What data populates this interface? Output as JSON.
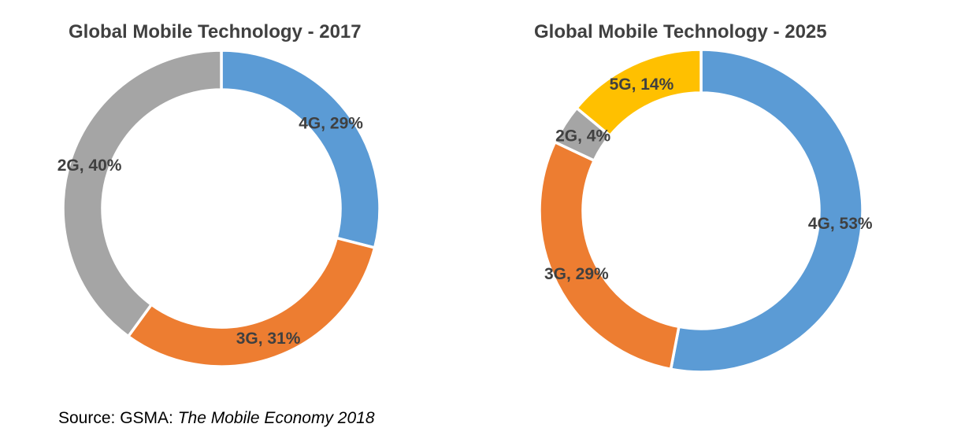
{
  "page": {
    "background_color": "#FFFFFF",
    "text_color": "#404040",
    "slice_border_color": "#FFFFFF"
  },
  "source_note": {
    "prefix": "Source: GSMA: ",
    "italic": "The Mobile Economy 2018"
  },
  "chart_data": [
    {
      "type": "pie",
      "subtype": "donut",
      "title": "Global Mobile Technology - 2017",
      "start_angle_deg": 0,
      "direction": "clockwise",
      "hole_ratio": 0.75,
      "label_format": "{label}, {value}%",
      "labels_position": "inside-ring",
      "legend": "none",
      "slices": [
        {
          "label": "4G",
          "value": 29,
          "color": "#5B9BD5"
        },
        {
          "label": "3G",
          "value": 31,
          "color": "#ED7D31"
        },
        {
          "label": "2G",
          "value": 40,
          "color": "#A5A5A5"
        }
      ]
    },
    {
      "type": "pie",
      "subtype": "donut",
      "title": "Global Mobile Technology - 2025",
      "start_angle_deg": 0,
      "direction": "clockwise",
      "hole_ratio": 0.73,
      "label_format": "{label}, {value}%",
      "labels_position": "inside-ring",
      "legend": "none",
      "slices": [
        {
          "label": "4G",
          "value": 53,
          "color": "#5B9BD5"
        },
        {
          "label": "3G",
          "value": 29,
          "color": "#ED7D31"
        },
        {
          "label": "2G",
          "value": 4,
          "color": "#A5A5A5"
        },
        {
          "label": "5G",
          "value": 14,
          "color": "#FFC000"
        }
      ]
    }
  ]
}
